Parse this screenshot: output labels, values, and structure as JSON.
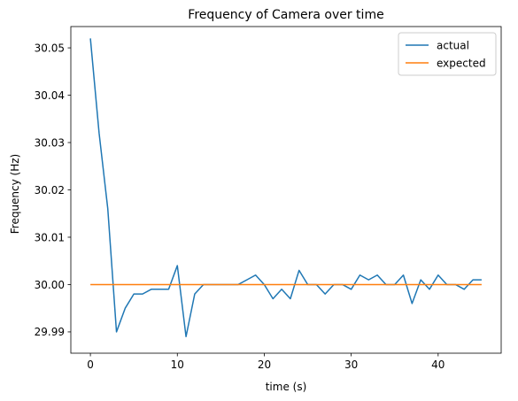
{
  "chart_data": {
    "type": "line",
    "title": "Frequency of Camera over time",
    "xlabel": "time (s)",
    "ylabel": "Frequency (Hz)",
    "xlim": [
      -2.25,
      47.25
    ],
    "ylim": [
      29.9855,
      30.0545
    ],
    "xticks": [
      0,
      10,
      20,
      30,
      40
    ],
    "yticks": [
      29.99,
      30.0,
      30.01,
      30.02,
      30.03,
      30.04,
      30.05
    ],
    "ytick_labels": [
      "29.99",
      "30.00",
      "30.01",
      "30.02",
      "30.03",
      "30.04",
      "30.05"
    ],
    "grid": false,
    "legend_position": "top-right",
    "series": [
      {
        "name": "actual",
        "color": "#1f77b4",
        "x": [
          0,
          1,
          2,
          3,
          4,
          5,
          6,
          7,
          8,
          9,
          10,
          11,
          12,
          13,
          14,
          15,
          16,
          17,
          18,
          19,
          20,
          21,
          22,
          23,
          24,
          25,
          26,
          27,
          28,
          29,
          30,
          31,
          32,
          33,
          34,
          35,
          36,
          37,
          38,
          39,
          40,
          41,
          42,
          43,
          44,
          45
        ],
        "y": [
          30.052,
          30.032,
          30.016,
          29.99,
          29.995,
          29.998,
          29.998,
          29.999,
          29.999,
          29.999,
          30.004,
          29.989,
          29.998,
          30.0,
          30.0,
          30.0,
          30.0,
          30.0,
          30.001,
          30.002,
          30.0,
          29.997,
          29.999,
          29.997,
          30.003,
          30.0,
          30.0,
          29.998,
          30.0,
          30.0,
          29.999,
          30.002,
          30.001,
          30.002,
          30.0,
          30.0,
          30.002,
          29.996,
          30.001,
          29.999,
          30.002,
          30.0,
          30.0,
          29.999,
          30.001,
          30.001
        ]
      },
      {
        "name": "expected",
        "color": "#ff7f0e",
        "x": [
          0,
          45
        ],
        "y": [
          30.0,
          30.0
        ]
      }
    ]
  }
}
